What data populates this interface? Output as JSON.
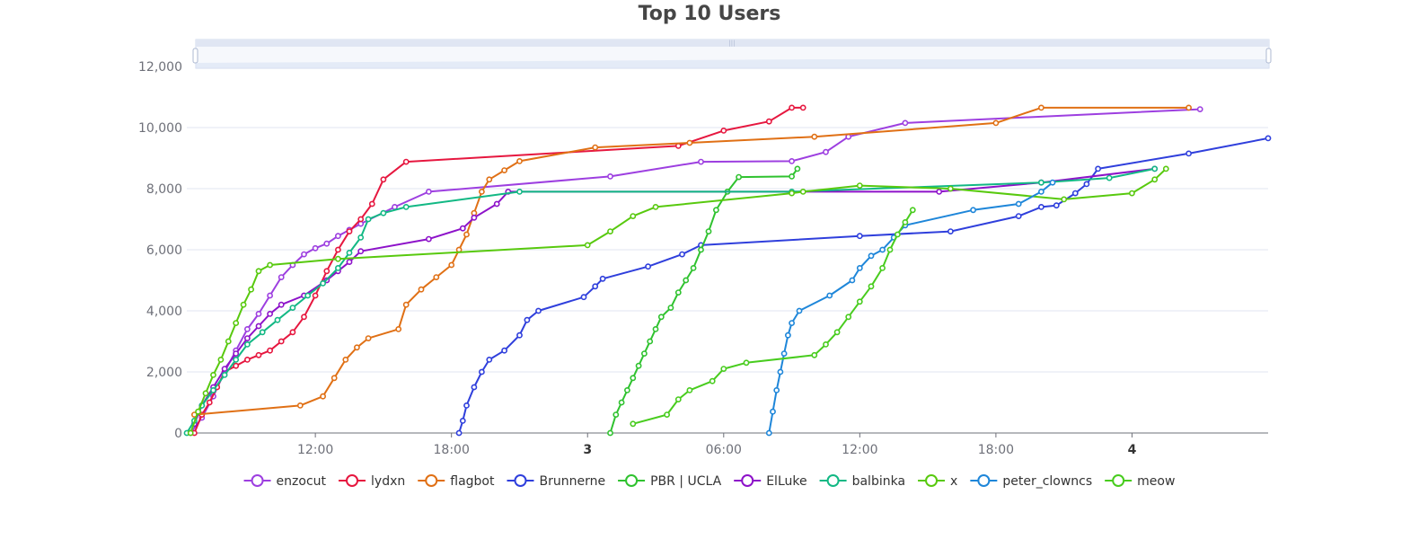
{
  "chart_data": {
    "type": "line",
    "title": "Top 10 Users",
    "xlabel": "",
    "ylabel": "",
    "ylim": [
      0,
      12000
    ],
    "y_ticks": [
      "0",
      "2,000",
      "4,000",
      "6,000",
      "8,000",
      "10,000",
      "12,000"
    ],
    "x_range": [
      "day2 06:20",
      "day4 06:00"
    ],
    "x_ticks": [
      {
        "t": "day2 12:00",
        "label": "12:00",
        "bold": false
      },
      {
        "t": "day2 18:00",
        "label": "18:00",
        "bold": false
      },
      {
        "t": "day3 00:00",
        "label": "3",
        "bold": true
      },
      {
        "t": "day3 06:00",
        "label": "06:00",
        "bold": false
      },
      {
        "t": "day3 12:00",
        "label": "12:00",
        "bold": false
      },
      {
        "t": "day3 18:00",
        "label": "18:00",
        "bold": false
      },
      {
        "t": "day4 00:00",
        "label": "4",
        "bold": true
      }
    ],
    "grid": true,
    "legend_position": "bottom",
    "has_zoom_slider": true,
    "series": [
      {
        "name": "enzocut",
        "color": "#9d3fe0",
        "points": [
          [
            "day2 06:30",
            0
          ],
          [
            "day2 07:00",
            500
          ],
          [
            "day2 07:30",
            1200
          ],
          [
            "day2 08:00",
            2000
          ],
          [
            "day2 08:30",
            2700
          ],
          [
            "day2 09:00",
            3400
          ],
          [
            "day2 09:30",
            3900
          ],
          [
            "day2 10:00",
            4500
          ],
          [
            "day2 10:30",
            5100
          ],
          [
            "day2 11:00",
            5500
          ],
          [
            "day2 11:30",
            5850
          ],
          [
            "day2 12:00",
            6050
          ],
          [
            "day2 12:30",
            6200
          ],
          [
            "day2 13:00",
            6450
          ],
          [
            "day2 13:30",
            6650
          ],
          [
            "day2 14:00",
            6850
          ],
          [
            "day2 15:30",
            7400
          ],
          [
            "day2 17:00",
            7900
          ],
          [
            "day3 01:00",
            8400
          ],
          [
            "day3 05:00",
            8880
          ],
          [
            "day3 09:00",
            8900
          ],
          [
            "day3 10:30",
            9200
          ],
          [
            "day3 11:30",
            9700
          ],
          [
            "day3 14:00",
            10150
          ],
          [
            "day4 03:00",
            10600
          ]
        ]
      },
      {
        "name": "lydxn",
        "color": "#e6173f",
        "points": [
          [
            "day2 06:40",
            0
          ],
          [
            "day2 07:00",
            600
          ],
          [
            "day2 07:20",
            1000
          ],
          [
            "day2 07:40",
            1500
          ],
          [
            "day2 08:00",
            2000
          ],
          [
            "day2 08:30",
            2200
          ],
          [
            "day2 09:00",
            2400
          ],
          [
            "day2 09:30",
            2550
          ],
          [
            "day2 10:00",
            2700
          ],
          [
            "day2 10:30",
            3000
          ],
          [
            "day2 11:00",
            3300
          ],
          [
            "day2 11:30",
            3800
          ],
          [
            "day2 12:00",
            4500
          ],
          [
            "day2 12:30",
            5300
          ],
          [
            "day2 13:00",
            6000
          ],
          [
            "day2 13:30",
            6600
          ],
          [
            "day2 14:00",
            7000
          ],
          [
            "day2 14:30",
            7500
          ],
          [
            "day2 15:00",
            8300
          ],
          [
            "day2 16:00",
            8880
          ],
          [
            "day3 04:00",
            9400
          ],
          [
            "day3 06:00",
            9900
          ],
          [
            "day3 08:00",
            10200
          ],
          [
            "day3 09:00",
            10650
          ],
          [
            "day3 09:30",
            10650
          ]
        ]
      },
      {
        "name": "flagbot",
        "color": "#e07015",
        "points": [
          [
            "day2 06:40",
            600
          ],
          [
            "day2 11:20",
            900
          ],
          [
            "day2 12:20",
            1200
          ],
          [
            "day2 12:50",
            1800
          ],
          [
            "day2 13:20",
            2400
          ],
          [
            "day2 13:50",
            2800
          ],
          [
            "day2 14:20",
            3100
          ],
          [
            "day2 15:40",
            3400
          ],
          [
            "day2 16:00",
            4200
          ],
          [
            "day2 16:40",
            4700
          ],
          [
            "day2 17:20",
            5100
          ],
          [
            "day2 18:00",
            5500
          ],
          [
            "day2 18:20",
            6000
          ],
          [
            "day2 18:40",
            6500
          ],
          [
            "day2 19:00",
            7200
          ],
          [
            "day2 19:20",
            7900
          ],
          [
            "day2 19:40",
            8300
          ],
          [
            "day2 20:20",
            8600
          ],
          [
            "day2 21:00",
            8900
          ],
          [
            "day3 00:20",
            9350
          ],
          [
            "day3 04:30",
            9500
          ],
          [
            "day3 10:00",
            9700
          ],
          [
            "day3 18:00",
            10150
          ],
          [
            "day3 20:00",
            10650
          ],
          [
            "day4 02:30",
            10650
          ]
        ]
      },
      {
        "name": "Brunnerne",
        "color": "#2f3fdc",
        "points": [
          [
            "day2 18:20",
            0
          ],
          [
            "day2 18:30",
            400
          ],
          [
            "day2 18:40",
            900
          ],
          [
            "day2 19:00",
            1500
          ],
          [
            "day2 19:20",
            2000
          ],
          [
            "day2 19:40",
            2400
          ],
          [
            "day2 20:20",
            2700
          ],
          [
            "day2 21:00",
            3200
          ],
          [
            "day2 21:20",
            3700
          ],
          [
            "day2 21:50",
            4000
          ],
          [
            "day2 23:50",
            4450
          ],
          [
            "day3 00:20",
            4800
          ],
          [
            "day3 00:40",
            5050
          ],
          [
            "day3 02:40",
            5450
          ],
          [
            "day3 04:10",
            5850
          ],
          [
            "day3 05:00",
            6150
          ],
          [
            "day3 12:00",
            6450
          ],
          [
            "day3 16:00",
            6600
          ],
          [
            "day3 19:00",
            7100
          ],
          [
            "day3 20:00",
            7400
          ],
          [
            "day3 20:40",
            7450
          ],
          [
            "day3 21:30",
            7850
          ],
          [
            "day3 22:00",
            8150
          ],
          [
            "day3 22:30",
            8650
          ],
          [
            "day4 02:30",
            9150
          ],
          [
            "day4 06:00",
            9650
          ]
        ]
      },
      {
        "name": "PBR | UCLA",
        "color": "#2fc22f",
        "points": [
          [
            "day3 01:00",
            0
          ],
          [
            "day3 01:15",
            600
          ],
          [
            "day3 01:30",
            1000
          ],
          [
            "day3 01:45",
            1400
          ],
          [
            "day3 02:00",
            1800
          ],
          [
            "day3 02:15",
            2200
          ],
          [
            "day3 02:30",
            2600
          ],
          [
            "day3 02:45",
            3000
          ],
          [
            "day3 03:00",
            3400
          ],
          [
            "day3 03:15",
            3800
          ],
          [
            "day3 03:40",
            4100
          ],
          [
            "day3 04:00",
            4600
          ],
          [
            "day3 04:20",
            5000
          ],
          [
            "day3 04:40",
            5400
          ],
          [
            "day3 05:00",
            6000
          ],
          [
            "day3 05:20",
            6600
          ],
          [
            "day3 05:40",
            7300
          ],
          [
            "day3 06:10",
            7900
          ],
          [
            "day3 06:40",
            8380
          ],
          [
            "day3 09:00",
            8400
          ],
          [
            "day3 09:15",
            8650
          ]
        ]
      },
      {
        "name": "ElLuke",
        "color": "#8d12c9",
        "points": [
          [
            "day2 06:40",
            300
          ],
          [
            "day2 07:00",
            900
          ],
          [
            "day2 07:30",
            1500
          ],
          [
            "day2 08:00",
            2100
          ],
          [
            "day2 08:30",
            2600
          ],
          [
            "day2 09:00",
            3100
          ],
          [
            "day2 09:30",
            3500
          ],
          [
            "day2 10:00",
            3900
          ],
          [
            "day2 10:30",
            4200
          ],
          [
            "day2 11:30",
            4500
          ],
          [
            "day2 12:30",
            5000
          ],
          [
            "day2 13:00",
            5300
          ],
          [
            "day2 13:30",
            5600
          ],
          [
            "day2 14:00",
            5950
          ],
          [
            "day2 17:00",
            6350
          ],
          [
            "day2 18:30",
            6700
          ],
          [
            "day2 19:00",
            7050
          ],
          [
            "day2 20:00",
            7500
          ],
          [
            "day2 20:30",
            7900
          ],
          [
            "day3 15:30",
            7900
          ],
          [
            "day3 20:00",
            8200
          ],
          [
            "day4 01:00",
            8650
          ]
        ]
      },
      {
        "name": "balbinka",
        "color": "#12b884",
        "points": [
          [
            "day2 06:20",
            0
          ],
          [
            "day2 06:40",
            400
          ],
          [
            "day2 07:00",
            900
          ],
          [
            "day2 07:30",
            1400
          ],
          [
            "day2 08:00",
            1900
          ],
          [
            "day2 08:30",
            2400
          ],
          [
            "day2 09:00",
            2900
          ],
          [
            "day2 09:40",
            3300
          ],
          [
            "day2 10:20",
            3700
          ],
          [
            "day2 11:00",
            4100
          ],
          [
            "day2 11:40",
            4500
          ],
          [
            "day2 12:20",
            4900
          ],
          [
            "day2 13:00",
            5400
          ],
          [
            "day2 13:30",
            5900
          ],
          [
            "day2 14:00",
            6400
          ],
          [
            "day2 14:20",
            7000
          ],
          [
            "day2 15:00",
            7200
          ],
          [
            "day2 16:00",
            7400
          ],
          [
            "day2 21:00",
            7900
          ],
          [
            "day3 09:00",
            7900
          ],
          [
            "day3 20:00",
            8200
          ],
          [
            "day3 23:00",
            8350
          ],
          [
            "day4 01:00",
            8650
          ]
        ]
      },
      {
        "name": "x",
        "color": "#58c90e",
        "points": [
          [
            "day2 06:30",
            0
          ],
          [
            "day2 06:50",
            700
          ],
          [
            "day2 07:10",
            1300
          ],
          [
            "day2 07:30",
            1900
          ],
          [
            "day2 07:50",
            2400
          ],
          [
            "day2 08:10",
            3000
          ],
          [
            "day2 08:30",
            3600
          ],
          [
            "day2 08:50",
            4200
          ],
          [
            "day2 09:10",
            4700
          ],
          [
            "day2 09:30",
            5300
          ],
          [
            "day2 10:00",
            5500
          ],
          [
            "day2 13:00",
            5700
          ],
          [
            "day3 00:00",
            6150
          ],
          [
            "day3 01:00",
            6600
          ],
          [
            "day3 02:00",
            7100
          ],
          [
            "day3 03:00",
            7400
          ],
          [
            "day3 09:00",
            7850
          ],
          [
            "day3 09:30",
            7900
          ],
          [
            "day3 12:00",
            8100
          ],
          [
            "day3 16:00",
            8000
          ],
          [
            "day3 21:00",
            7650
          ],
          [
            "day4 00:00",
            7850
          ],
          [
            "day4 01:00",
            8300
          ],
          [
            "day4 01:30",
            8650
          ]
        ]
      },
      {
        "name": "peter_clowncs",
        "color": "#1e86d9",
        "points": [
          [
            "day3 08:00",
            0
          ],
          [
            "day3 08:10",
            700
          ],
          [
            "day3 08:20",
            1400
          ],
          [
            "day3 08:30",
            2000
          ],
          [
            "day3 08:40",
            2600
          ],
          [
            "day3 08:50",
            3200
          ],
          [
            "day3 09:00",
            3600
          ],
          [
            "day3 09:20",
            4000
          ],
          [
            "day3 10:40",
            4500
          ],
          [
            "day3 11:40",
            5000
          ],
          [
            "day3 12:00",
            5400
          ],
          [
            "day3 12:30",
            5800
          ],
          [
            "day3 13:00",
            6000
          ],
          [
            "day3 13:30",
            6400
          ],
          [
            "day3 14:00",
            6800
          ],
          [
            "day3 17:00",
            7300
          ],
          [
            "day3 19:00",
            7500
          ],
          [
            "day3 20:00",
            7900
          ],
          [
            "day3 20:30",
            8200
          ]
        ]
      },
      {
        "name": "meow",
        "color": "#48cc1e",
        "points": [
          [
            "day3 02:00",
            300
          ],
          [
            "day3 03:30",
            600
          ],
          [
            "day3 04:00",
            1100
          ],
          [
            "day3 04:30",
            1400
          ],
          [
            "day3 05:30",
            1700
          ],
          [
            "day3 06:00",
            2100
          ],
          [
            "day3 07:00",
            2300
          ],
          [
            "day3 10:00",
            2550
          ],
          [
            "day3 10:30",
            2900
          ],
          [
            "day3 11:00",
            3300
          ],
          [
            "day3 11:30",
            3800
          ],
          [
            "day3 12:00",
            4300
          ],
          [
            "day3 12:30",
            4800
          ],
          [
            "day3 13:00",
            5400
          ],
          [
            "day3 13:20",
            6000
          ],
          [
            "day3 13:40",
            6500
          ],
          [
            "day3 14:00",
            6900
          ],
          [
            "day3 14:20",
            7300
          ]
        ]
      }
    ]
  }
}
